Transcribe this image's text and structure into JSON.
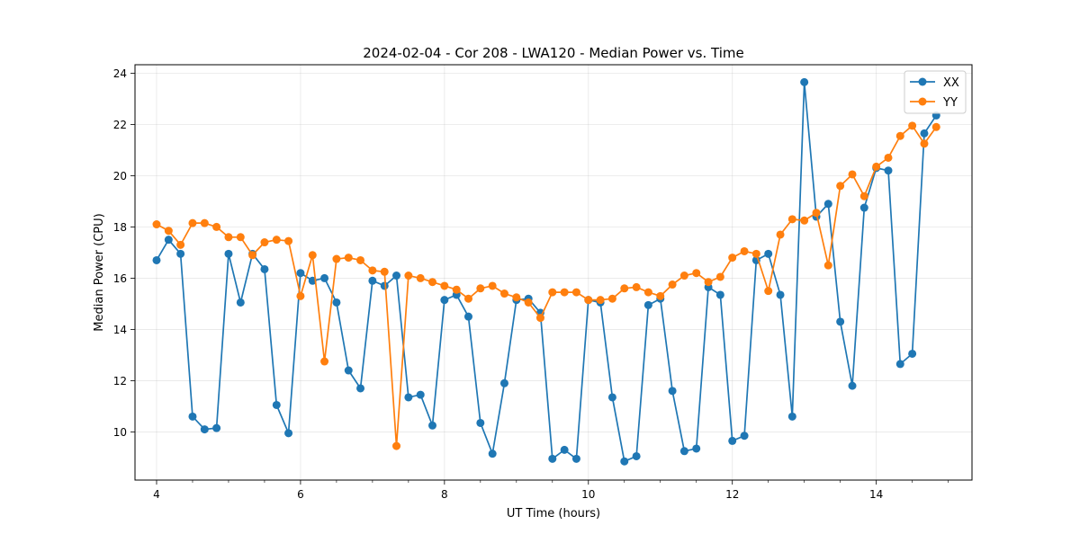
{
  "chart_data": {
    "type": "line",
    "title": "2024-02-04 - Cor 208 - LWA120 - Median Power vs. Time",
    "xlabel": "UT Time (hours)",
    "ylabel": "Median Power (CPU)",
    "xlim": [
      3.7,
      15.33
    ],
    "ylim": [
      8.12,
      24.33
    ],
    "x_ticks": [
      4,
      6,
      8,
      10,
      12,
      14
    ],
    "x_tick_labels": [
      "4",
      "6",
      "8",
      "10",
      "12",
      "14"
    ],
    "x_minor_step": 0.5,
    "y_ticks": [
      10,
      12,
      14,
      16,
      18,
      20,
      22,
      24
    ],
    "y_tick_labels": [
      "10",
      "12",
      "14",
      "16",
      "18",
      "20",
      "22",
      "24"
    ],
    "grid": true,
    "legend_position": "top-right",
    "x": [
      4.0,
      4.167,
      4.333,
      4.5,
      4.667,
      4.833,
      5.0,
      5.167,
      5.333,
      5.5,
      5.667,
      5.833,
      6.0,
      6.167,
      6.333,
      6.5,
      6.667,
      6.833,
      7.0,
      7.167,
      7.333,
      7.5,
      7.667,
      7.833,
      8.0,
      8.167,
      8.333,
      8.5,
      8.667,
      8.833,
      9.0,
      9.167,
      9.333,
      9.5,
      9.667,
      9.833,
      10.0,
      10.167,
      10.333,
      10.5,
      10.667,
      10.833,
      11.0,
      11.167,
      11.333,
      11.5,
      11.667,
      11.833,
      12.0,
      12.167,
      12.333,
      12.5,
      12.667,
      12.833,
      13.0,
      13.167,
      13.333,
      13.5,
      13.667,
      13.833,
      14.0,
      14.167,
      14.333,
      14.5,
      14.667,
      14.833
    ],
    "series": [
      {
        "name": "XX",
        "color": "#1f77b4",
        "values": [
          16.7,
          17.5,
          16.95,
          10.6,
          10.1,
          10.15,
          16.95,
          15.05,
          16.95,
          16.35,
          11.05,
          9.95,
          16.2,
          15.9,
          16.0,
          15.05,
          12.4,
          11.7,
          15.9,
          15.7,
          16.1,
          11.35,
          11.45,
          10.25,
          15.15,
          15.35,
          14.5,
          10.35,
          9.15,
          11.9,
          15.15,
          15.2,
          14.65,
          8.95,
          9.3,
          8.95,
          15.15,
          15.05,
          11.35,
          8.85,
          9.05,
          14.95,
          15.2,
          11.6,
          9.25,
          9.35,
          15.65,
          15.35,
          9.65,
          9.85,
          16.7,
          16.95,
          15.35,
          10.6,
          23.65,
          18.4,
          18.9,
          14.3,
          11.8,
          18.75,
          20.3,
          20.2,
          12.65,
          13.05,
          21.65,
          22.35
        ]
      },
      {
        "name": "YY",
        "color": "#ff7f0e",
        "values": [
          18.1,
          17.85,
          17.3,
          18.15,
          18.15,
          18.0,
          17.6,
          17.6,
          16.9,
          17.4,
          17.5,
          17.45,
          15.3,
          16.9,
          12.75,
          16.75,
          16.8,
          16.7,
          16.3,
          16.25,
          9.45,
          16.1,
          16.0,
          15.85,
          15.7,
          15.55,
          15.2,
          15.6,
          15.7,
          15.4,
          15.25,
          15.05,
          14.45,
          15.45,
          15.45,
          15.45,
          15.15,
          15.15,
          15.2,
          15.6,
          15.65,
          15.45,
          15.3,
          15.75,
          16.1,
          16.2,
          15.85,
          16.05,
          16.8,
          17.05,
          16.95,
          15.5,
          17.7,
          18.3,
          18.25,
          18.55,
          16.5,
          19.6,
          20.05,
          19.2,
          20.35,
          20.7,
          21.55,
          21.95,
          21.25,
          21.9
        ]
      }
    ]
  }
}
